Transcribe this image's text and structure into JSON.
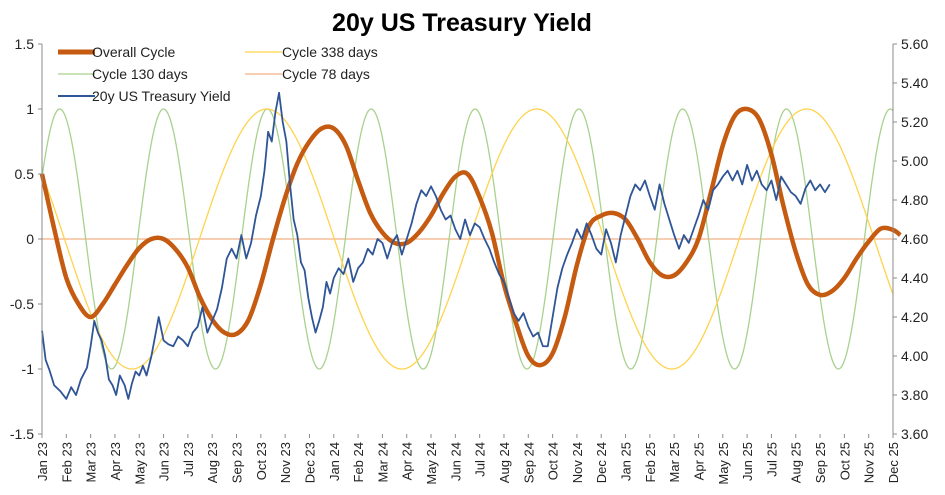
{
  "chart_data": {
    "type": "line",
    "title": "20y US Treasury Yield",
    "x_start": "Jan 23",
    "x_labels": [
      "Jan 23",
      "Feb 23",
      "Mar 23",
      "Apr 23",
      "May 23",
      "Jun 23",
      "Jul 23",
      "Aug 23",
      "Sep 23",
      "Oct 23",
      "Nov 23",
      "Dec 23",
      "Jan 24",
      "Feb 24",
      "Mar 24",
      "Apr 24",
      "May 24",
      "Jun 24",
      "Jul 24",
      "Aug 24",
      "Sep 24",
      "Oct 24",
      "Nov 24",
      "Dec 24",
      "Jan 25",
      "Feb 25",
      "Mar 25",
      "Apr 25",
      "May 25",
      "Jun 25",
      "Jul 25",
      "Aug 25",
      "Sep 25",
      "Oct 25",
      "Nov 25",
      "Dec 25"
    ],
    "y_left": {
      "range": [
        -1.5,
        1.5
      ],
      "ticks": [
        "1.5",
        "1",
        "0.5",
        "0",
        "-0.5",
        "-1",
        "-1.5"
      ]
    },
    "y_right": {
      "range": [
        3.6,
        5.6
      ],
      "ticks": [
        "5.60",
        "5.40",
        "5.20",
        "5.00",
        "4.80",
        "4.60",
        "4.40",
        "4.20",
        "4.00",
        "3.80",
        "3.60"
      ]
    },
    "legend": [
      {
        "label": "Overall Cycle",
        "color": "#c55a11"
      },
      {
        "label": "Cycle 338 days",
        "color": "#ffd34d"
      },
      {
        "label": "Cycle 130 days",
        "color": "#a9d18e"
      },
      {
        "label": "Cycle 78 days",
        "color": "#f4b183"
      },
      {
        "label": "20y US Treasury Yield",
        "color": "#2f5597"
      }
    ],
    "series": [
      {
        "name": "Overall Cycle",
        "axis": "left",
        "color": "#c55a11",
        "points": [
          [
            0,
            0.5
          ],
          [
            0.5,
            0.08
          ],
          [
            1,
            -0.3
          ],
          [
            1.5,
            -0.5
          ],
          [
            2,
            -0.6
          ],
          [
            2.5,
            -0.5
          ],
          [
            3,
            -0.35
          ],
          [
            3.5,
            -0.2
          ],
          [
            4,
            -0.07
          ],
          [
            4.5,
            0.0
          ],
          [
            5,
            0.0
          ],
          [
            5.5,
            -0.08
          ],
          [
            6,
            -0.22
          ],
          [
            6.5,
            -0.45
          ],
          [
            7,
            -0.62
          ],
          [
            7.5,
            -0.72
          ],
          [
            8,
            -0.73
          ],
          [
            8.5,
            -0.62
          ],
          [
            9,
            -0.35
          ],
          [
            9.5,
            0.0
          ],
          [
            10,
            0.32
          ],
          [
            10.5,
            0.58
          ],
          [
            11,
            0.75
          ],
          [
            11.5,
            0.85
          ],
          [
            12,
            0.85
          ],
          [
            12.5,
            0.72
          ],
          [
            13,
            0.45
          ],
          [
            13.5,
            0.2
          ],
          [
            14,
            0.05
          ],
          [
            14.5,
            -0.03
          ],
          [
            15,
            -0.03
          ],
          [
            15.5,
            0.05
          ],
          [
            16,
            0.18
          ],
          [
            16.5,
            0.35
          ],
          [
            17,
            0.48
          ],
          [
            17.5,
            0.5
          ],
          [
            18,
            0.32
          ],
          [
            18.5,
            0.05
          ],
          [
            19,
            -0.35
          ],
          [
            19.5,
            -0.65
          ],
          [
            20,
            -0.9
          ],
          [
            20.5,
            -0.97
          ],
          [
            21,
            -0.88
          ],
          [
            21.5,
            -0.6
          ],
          [
            22,
            -0.2
          ],
          [
            22.5,
            0.1
          ],
          [
            23,
            0.18
          ],
          [
            23.5,
            0.2
          ],
          [
            24,
            0.15
          ],
          [
            24.5,
            0.0
          ],
          [
            25,
            -0.18
          ],
          [
            25.5,
            -0.28
          ],
          [
            26,
            -0.28
          ],
          [
            26.5,
            -0.18
          ],
          [
            27,
            0.0
          ],
          [
            27.5,
            0.35
          ],
          [
            28,
            0.72
          ],
          [
            28.5,
            0.95
          ],
          [
            29,
            1.0
          ],
          [
            29.5,
            0.92
          ],
          [
            30,
            0.65
          ],
          [
            30.5,
            0.25
          ],
          [
            31,
            -0.1
          ],
          [
            31.5,
            -0.35
          ],
          [
            32,
            -0.43
          ],
          [
            32.5,
            -0.4
          ],
          [
            33,
            -0.3
          ],
          [
            33.5,
            -0.15
          ],
          [
            34,
            -0.02
          ],
          [
            34.5,
            0.08
          ],
          [
            35,
            0.07
          ],
          [
            35.3,
            0.03
          ]
        ]
      },
      {
        "name": "Cycle 338 days",
        "axis": "left",
        "color": "#ffd34d",
        "period_months": 11.1,
        "phase_anchor_month": 0,
        "amplitude": 1
      },
      {
        "name": "Cycle 130 days",
        "axis": "left",
        "color": "#a9d18e",
        "period_months": 4.27,
        "phase_peak_month": 5.0,
        "amplitude": 1
      },
      {
        "name": "Cycle 78 days",
        "axis": "left",
        "color": "#f4b183",
        "value": 0
      },
      {
        "name": "20y US Treasury Yield",
        "axis": "right",
        "color": "#2f5597",
        "points": [
          [
            0,
            4.13
          ],
          [
            0.15,
            3.98
          ],
          [
            0.3,
            3.93
          ],
          [
            0.5,
            3.85
          ],
          [
            0.75,
            3.82
          ],
          [
            1,
            3.78
          ],
          [
            1.2,
            3.84
          ],
          [
            1.4,
            3.8
          ],
          [
            1.6,
            3.88
          ],
          [
            1.85,
            3.94
          ],
          [
            2,
            4.05
          ],
          [
            2.15,
            4.18
          ],
          [
            2.3,
            4.12
          ],
          [
            2.45,
            4.08
          ],
          [
            2.6,
            4.0
          ],
          [
            2.75,
            3.88
          ],
          [
            2.9,
            3.85
          ],
          [
            3.05,
            3.8
          ],
          [
            3.2,
            3.9
          ],
          [
            3.4,
            3.85
          ],
          [
            3.55,
            3.78
          ],
          [
            3.7,
            3.86
          ],
          [
            3.85,
            3.92
          ],
          [
            4.0,
            3.9
          ],
          [
            4.15,
            3.95
          ],
          [
            4.3,
            3.9
          ],
          [
            4.5,
            4.0
          ],
          [
            4.65,
            4.1
          ],
          [
            4.8,
            4.2
          ],
          [
            5.0,
            4.08
          ],
          [
            5.2,
            4.06
          ],
          [
            5.4,
            4.05
          ],
          [
            5.6,
            4.1
          ],
          [
            5.8,
            4.08
          ],
          [
            6.0,
            4.05
          ],
          [
            6.2,
            4.12
          ],
          [
            6.4,
            4.15
          ],
          [
            6.6,
            4.25
          ],
          [
            6.8,
            4.12
          ],
          [
            7.0,
            4.18
          ],
          [
            7.2,
            4.24
          ],
          [
            7.4,
            4.35
          ],
          [
            7.6,
            4.5
          ],
          [
            7.8,
            4.55
          ],
          [
            8.0,
            4.5
          ],
          [
            8.2,
            4.62
          ],
          [
            8.4,
            4.5
          ],
          [
            8.6,
            4.58
          ],
          [
            8.8,
            4.72
          ],
          [
            9.0,
            4.82
          ],
          [
            9.15,
            4.95
          ],
          [
            9.3,
            5.15
          ],
          [
            9.45,
            5.1
          ],
          [
            9.6,
            5.25
          ],
          [
            9.75,
            5.35
          ],
          [
            9.9,
            5.2
          ],
          [
            10.05,
            5.1
          ],
          [
            10.2,
            4.88
          ],
          [
            10.35,
            4.7
          ],
          [
            10.5,
            4.62
          ],
          [
            10.65,
            4.48
          ],
          [
            10.8,
            4.44
          ],
          [
            10.95,
            4.3
          ],
          [
            11.1,
            4.2
          ],
          [
            11.25,
            4.12
          ],
          [
            11.4,
            4.18
          ],
          [
            11.55,
            4.25
          ],
          [
            11.7,
            4.38
          ],
          [
            11.85,
            4.32
          ],
          [
            12.0,
            4.4
          ],
          [
            12.2,
            4.45
          ],
          [
            12.4,
            4.42
          ],
          [
            12.6,
            4.5
          ],
          [
            12.8,
            4.38
          ],
          [
            13.0,
            4.45
          ],
          [
            13.2,
            4.48
          ],
          [
            13.4,
            4.55
          ],
          [
            13.6,
            4.52
          ],
          [
            13.8,
            4.6
          ],
          [
            14.0,
            4.58
          ],
          [
            14.2,
            4.5
          ],
          [
            14.4,
            4.58
          ],
          [
            14.6,
            4.62
          ],
          [
            14.8,
            4.52
          ],
          [
            15.0,
            4.6
          ],
          [
            15.2,
            4.68
          ],
          [
            15.4,
            4.78
          ],
          [
            15.6,
            4.85
          ],
          [
            15.8,
            4.82
          ],
          [
            16.0,
            4.87
          ],
          [
            16.2,
            4.82
          ],
          [
            16.4,
            4.75
          ],
          [
            16.6,
            4.7
          ],
          [
            16.8,
            4.72
          ],
          [
            17.0,
            4.65
          ],
          [
            17.2,
            4.6
          ],
          [
            17.4,
            4.7
          ],
          [
            17.6,
            4.62
          ],
          [
            17.8,
            4.68
          ],
          [
            18.0,
            4.66
          ],
          [
            18.2,
            4.6
          ],
          [
            18.4,
            4.55
          ],
          [
            18.6,
            4.48
          ],
          [
            18.8,
            4.42
          ],
          [
            19.0,
            4.38
          ],
          [
            19.2,
            4.3
          ],
          [
            19.4,
            4.22
          ],
          [
            19.6,
            4.18
          ],
          [
            19.8,
            4.22
          ],
          [
            20.0,
            4.15
          ],
          [
            20.2,
            4.1
          ],
          [
            20.4,
            4.12
          ],
          [
            20.6,
            4.05
          ],
          [
            20.8,
            4.05
          ],
          [
            21.0,
            4.2
          ],
          [
            21.2,
            4.35
          ],
          [
            21.4,
            4.45
          ],
          [
            21.6,
            4.52
          ],
          [
            21.8,
            4.58
          ],
          [
            22.0,
            4.65
          ],
          [
            22.2,
            4.6
          ],
          [
            22.4,
            4.68
          ],
          [
            22.6,
            4.62
          ],
          [
            22.8,
            4.55
          ],
          [
            23.0,
            4.52
          ],
          [
            23.2,
            4.65
          ],
          [
            23.4,
            4.58
          ],
          [
            23.6,
            4.48
          ],
          [
            23.8,
            4.62
          ],
          [
            24.0,
            4.72
          ],
          [
            24.2,
            4.82
          ],
          [
            24.4,
            4.88
          ],
          [
            24.6,
            4.85
          ],
          [
            24.8,
            4.9
          ],
          [
            25.0,
            4.82
          ],
          [
            25.2,
            4.75
          ],
          [
            25.4,
            4.88
          ],
          [
            25.6,
            4.78
          ],
          [
            25.8,
            4.7
          ],
          [
            26.0,
            4.62
          ],
          [
            26.2,
            4.55
          ],
          [
            26.4,
            4.62
          ],
          [
            26.6,
            4.58
          ],
          [
            26.8,
            4.65
          ],
          [
            27.0,
            4.72
          ],
          [
            27.2,
            4.8
          ],
          [
            27.4,
            4.75
          ],
          [
            27.6,
            4.85
          ],
          [
            27.8,
            4.88
          ],
          [
            28.0,
            4.92
          ],
          [
            28.2,
            4.95
          ],
          [
            28.4,
            4.9
          ],
          [
            28.6,
            4.95
          ],
          [
            28.8,
            4.88
          ],
          [
            29.0,
            4.98
          ],
          [
            29.2,
            4.9
          ],
          [
            29.4,
            4.95
          ],
          [
            29.6,
            4.88
          ],
          [
            29.8,
            4.85
          ],
          [
            30.0,
            4.9
          ],
          [
            30.2,
            4.8
          ],
          [
            30.4,
            4.92
          ],
          [
            30.6,
            4.88
          ],
          [
            30.8,
            4.84
          ],
          [
            31.0,
            4.82
          ],
          [
            31.2,
            4.78
          ],
          [
            31.4,
            4.86
          ],
          [
            31.6,
            4.9
          ],
          [
            31.8,
            4.85
          ],
          [
            32.0,
            4.88
          ],
          [
            32.2,
            4.84
          ],
          [
            32.4,
            4.88
          ]
        ]
      }
    ],
    "grid": false,
    "legend_position": "top-left"
  }
}
